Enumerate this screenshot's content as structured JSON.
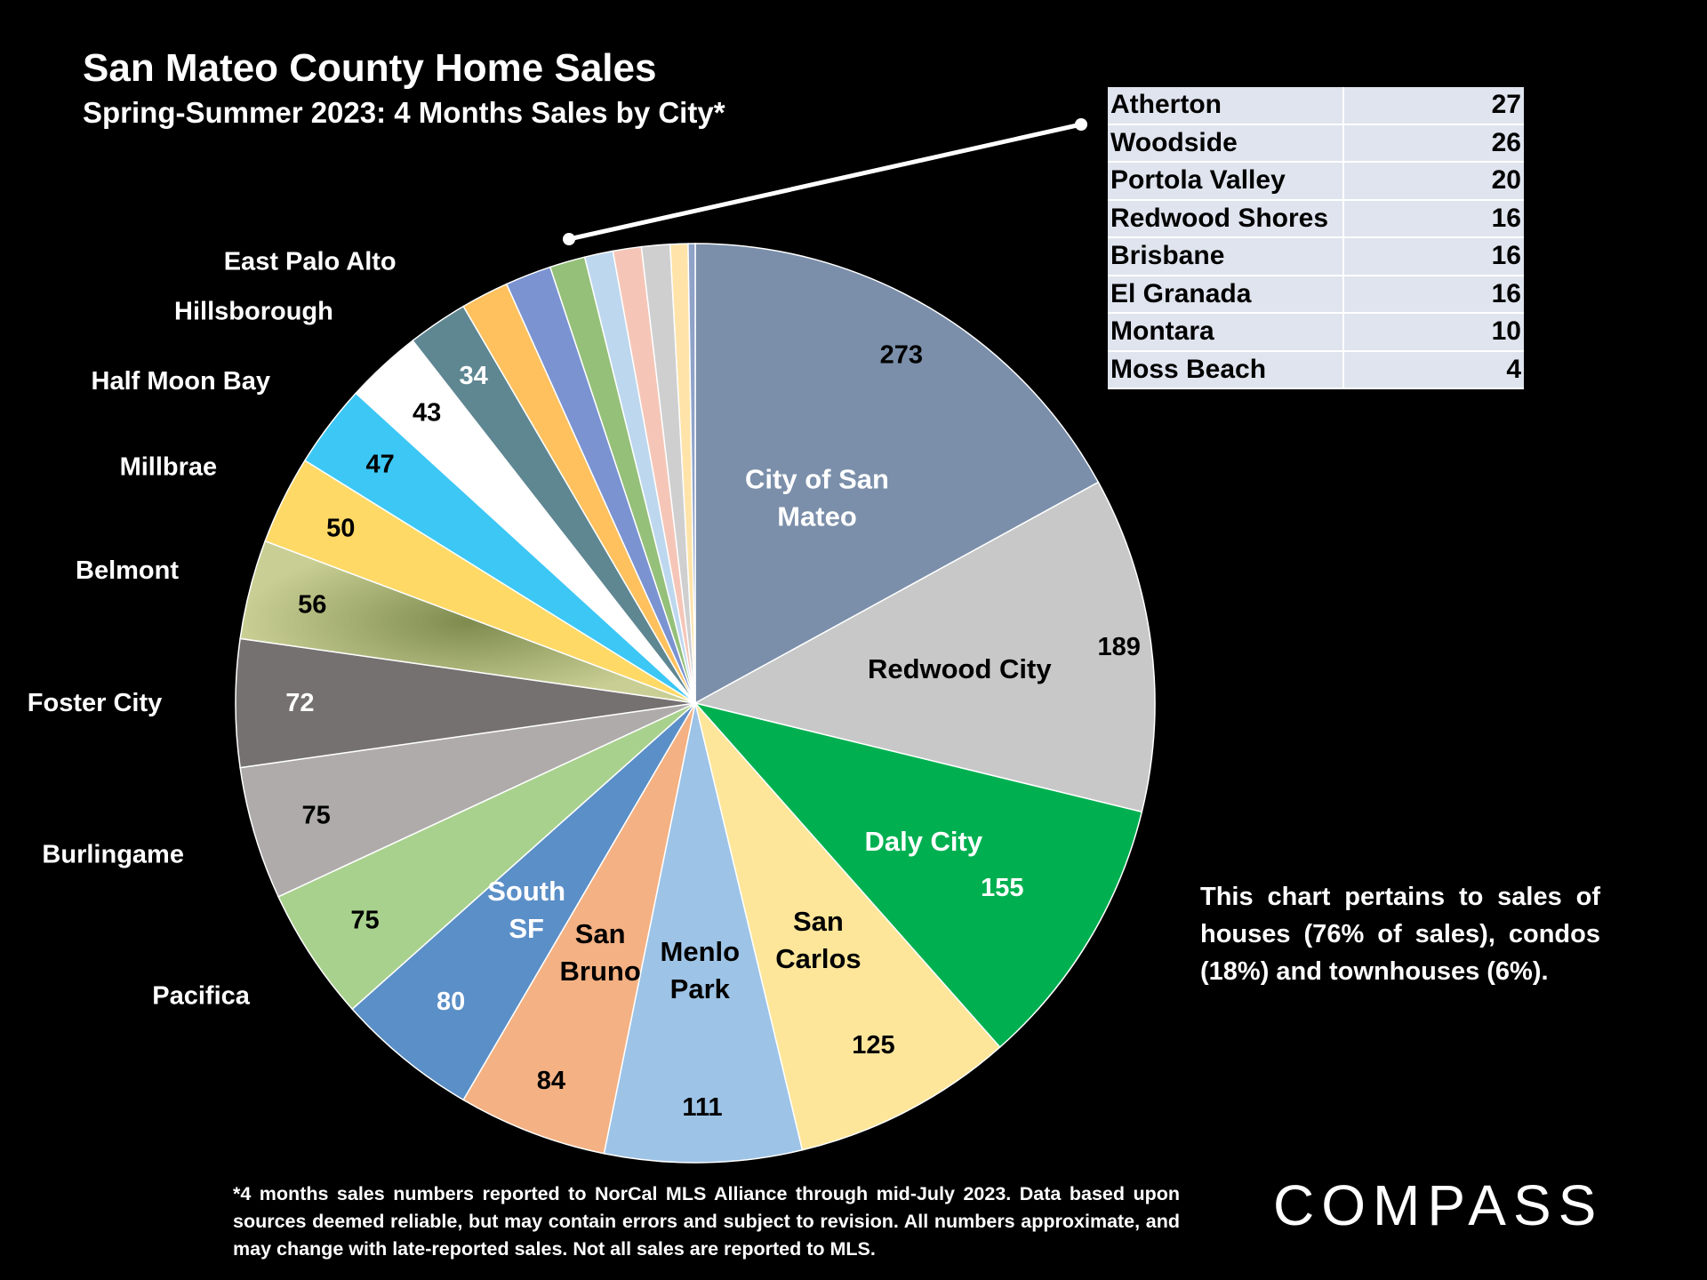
{
  "chart_data": {
    "type": "pie",
    "title": "San Mateo County Home Sales",
    "subtitle": "Spring-Summer 2023: 4 Months Sales by City*",
    "slices": [
      {
        "label": "City of San Mateo",
        "value": 273,
        "display": "273",
        "color": "#7b8faa",
        "label_color": "#ffffff",
        "value_color": "#000000"
      },
      {
        "label": "Redwood City",
        "value": 189,
        "display": "189",
        "color": "#c8c8c8",
        "label_color": "#000000",
        "value_color": "#000000"
      },
      {
        "label": "Daly City",
        "value": 155,
        "display": "155",
        "color": "#00b050",
        "label_color": "#ffffff",
        "value_color": "#ffffff"
      },
      {
        "label": "San Carlos",
        "value": 125,
        "display": "125",
        "color": "#fde69a",
        "label_color": "#000000",
        "value_color": "#000000"
      },
      {
        "label": "Menlo Park",
        "value": 111,
        "display": "111",
        "color": "#9dc3e6",
        "label_color": "#000000",
        "value_color": "#000000"
      },
      {
        "label": "San Bruno",
        "value": 84,
        "display": "84",
        "color": "#f4b183",
        "label_color": "#000000",
        "value_color": "#000000"
      },
      {
        "label": "South SF",
        "value": 80,
        "display": "80",
        "color": "#5b8fc7",
        "label_color": "#ffffff",
        "value_color": "#ffffff"
      },
      {
        "label": "Pacifica",
        "value": 75,
        "display": "75",
        "color": "#a9d18e",
        "label_color": "#ffffff",
        "value_color": "#000000"
      },
      {
        "label": "Burlingame",
        "value": 75,
        "display": "75",
        "color": "#afabab",
        "label_color": "#ffffff",
        "value_color": "#000000"
      },
      {
        "label": "Foster City",
        "value": 72,
        "display": "72",
        "color": "#767171",
        "label_color": "#ffffff",
        "value_color": "#ffffff"
      },
      {
        "label": "Belmont",
        "value": 56,
        "display": "56",
        "color": "#b5b97a",
        "label_color": "#ffffff",
        "value_color": "#000000"
      },
      {
        "label": "Millbrae",
        "value": 50,
        "display": "50",
        "color": "#ffd966",
        "label_color": "#ffffff",
        "value_color": "#000000"
      },
      {
        "label": "Half Moon Bay",
        "value": 47,
        "display": "47",
        "color": "#3cc7f5",
        "label_color": "#ffffff",
        "value_color": "#000000"
      },
      {
        "label": "Hillsborough",
        "value": 43,
        "display": "43",
        "color": "#ffffff",
        "label_color": "#ffffff",
        "value_color": "#000000"
      },
      {
        "label": "East Palo Alto",
        "value": 34,
        "display": "34",
        "color": "#5f8792",
        "label_color": "#ffffff",
        "value_color": "#ffffff"
      },
      {
        "label": "Atherton",
        "value": 27,
        "display": "",
        "color": "#ffc15e",
        "label_color": "#ffffff",
        "value_color": "#000000"
      },
      {
        "label": "Woodside",
        "value": 26,
        "display": "",
        "color": "#7b93d1",
        "label_color": "#ffffff",
        "value_color": "#000000"
      },
      {
        "label": "Portola Valley",
        "value": 20,
        "display": "",
        "color": "#94c07a",
        "label_color": "#ffffff",
        "value_color": "#000000"
      },
      {
        "label": "Redwood Shores",
        "value": 16,
        "display": "",
        "color": "#bdd7ee",
        "label_color": "#ffffff",
        "value_color": "#000000"
      },
      {
        "label": "Brisbane",
        "value": 16,
        "display": "",
        "color": "#f5c6b8",
        "label_color": "#ffffff",
        "value_color": "#000000"
      },
      {
        "label": "El Granada",
        "value": 16,
        "display": "",
        "color": "#cfcfcf",
        "label_color": "#ffffff",
        "value_color": "#000000"
      },
      {
        "label": "Montara",
        "value": 10,
        "display": "",
        "color": "#ffe3a8",
        "label_color": "#ffffff",
        "value_color": "#000000"
      },
      {
        "label": "Moss Beach",
        "value": 4,
        "display": "",
        "color": "#8fa3c8",
        "label_color": "#ffffff",
        "value_color": "#000000"
      }
    ],
    "outside_labels": [
      "Pacifica",
      "Burlingame",
      "Foster City",
      "Belmont",
      "Millbrae",
      "Half Moon Bay",
      "Hillsborough",
      "East Palo Alto"
    ],
    "inset_table": [
      {
        "city": "Atherton",
        "value": "27"
      },
      {
        "city": "Woodside",
        "value": "26"
      },
      {
        "city": "Portola Valley",
        "value": "20"
      },
      {
        "city": "Redwood Shores",
        "value": "16"
      },
      {
        "city": "Brisbane",
        "value": "16"
      },
      {
        "city": "El Granada",
        "value": "16"
      },
      {
        "city": "Montara",
        "value": "10"
      },
      {
        "city": "Moss Beach",
        "value": "4"
      }
    ]
  },
  "note": "This chart pertains to sales of houses (76% of sales), condos (18%) and townhouses (6%).",
  "footnote": "*4 months sales numbers reported to NorCal MLS Alliance through mid-July 2023. Data based upon sources deemed reliable, but may contain errors and subject to revision. All numbers approximate, and may change with late-reported sales. Not all sales are reported to MLS.",
  "brand": "COMPASS"
}
